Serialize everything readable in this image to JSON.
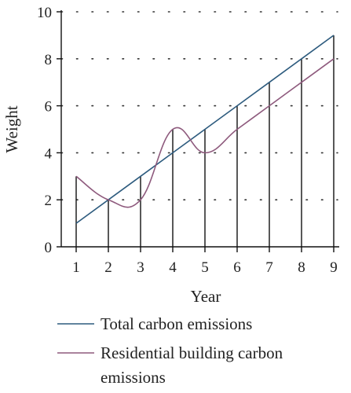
{
  "chart_data": {
    "type": "line",
    "title": "",
    "xlabel": "Year",
    "ylabel": "Weight",
    "x": [
      1,
      2,
      3,
      4,
      5,
      6,
      7,
      8,
      9
    ],
    "xlim": [
      1,
      9
    ],
    "ylim": [
      0,
      10
    ],
    "yticks": [
      0,
      2,
      4,
      6,
      8,
      10
    ],
    "grid": "horizontal dotted",
    "legend": "bottom",
    "series": [
      {
        "name": "Total carbon emissions",
        "values": [
          1,
          2,
          3,
          4,
          5,
          6,
          7,
          8,
          9
        ],
        "color": "#2d5b7e"
      },
      {
        "name": "Residential building carbon emissions",
        "values": [
          3,
          2,
          2,
          5,
          4,
          5,
          6,
          7,
          8
        ],
        "color": "#8e5a7d",
        "smooth": true
      }
    ],
    "drop_lines": "vertical lines from x-axis to the higher series at each year"
  }
}
